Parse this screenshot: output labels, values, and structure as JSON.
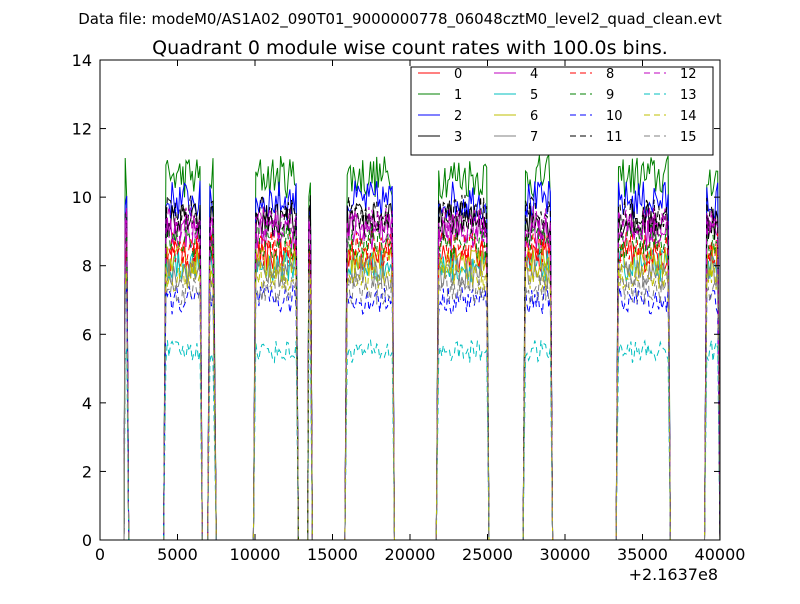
{
  "header": {
    "data_file_label": "Data file: modeM0/AS1A02_090T01_9000000778_06048cztM0_level2_quad_clean.evt"
  },
  "chart_data": {
    "type": "line",
    "title": "Quadrant 0 module wise count rates with 100.0s bins.",
    "xlabel": "",
    "ylabel": "",
    "x_offset_label": "+2.1637e8",
    "xlim": [
      0,
      40000
    ],
    "ylim": [
      0,
      14
    ],
    "x_ticks": [
      0,
      5000,
      10000,
      15000,
      20000,
      25000,
      30000,
      35000,
      40000
    ],
    "y_ticks": [
      0,
      2,
      4,
      6,
      8,
      10,
      12,
      14
    ],
    "x_tick_labels": [
      "0",
      "5000",
      "10000",
      "15000",
      "20000",
      "25000",
      "30000",
      "35000",
      "40000"
    ],
    "y_tick_labels": [
      "0",
      "2",
      "4",
      "6",
      "8",
      "10",
      "12",
      "14"
    ],
    "grid": false,
    "legend_position": "top-right",
    "legend_columns": 4,
    "segments": [
      [
        1550,
        1850
      ],
      [
        4100,
        6600
      ],
      [
        6950,
        7500
      ],
      [
        9900,
        12800
      ],
      [
        13400,
        13700
      ],
      [
        15800,
        19000
      ],
      [
        21700,
        25100
      ],
      [
        27300,
        29200
      ],
      [
        33300,
        36800
      ],
      [
        39000,
        40000
      ]
    ],
    "series": [
      {
        "name": "0",
        "color": "#ff0000",
        "dash": "solid",
        "level": 8.3
      },
      {
        "name": "1",
        "color": "#008000",
        "dash": "solid",
        "level": 10.6
      },
      {
        "name": "2",
        "color": "#0000ff",
        "dash": "solid",
        "level": 9.9
      },
      {
        "name": "3",
        "color": "#000000",
        "dash": "solid",
        "level": 9.3
      },
      {
        "name": "4",
        "color": "#bf00bf",
        "dash": "solid",
        "level": 9.0
      },
      {
        "name": "5",
        "color": "#00bfbf",
        "dash": "solid",
        "level": 8.0
      },
      {
        "name": "6",
        "color": "#bfbf00",
        "dash": "solid",
        "level": 8.1
      },
      {
        "name": "7",
        "color": "#808080",
        "dash": "solid",
        "level": 7.8
      },
      {
        "name": "8",
        "color": "#ff0000",
        "dash": "dashed",
        "level": 8.5
      },
      {
        "name": "9",
        "color": "#008000",
        "dash": "dashed",
        "level": 8.7
      },
      {
        "name": "10",
        "color": "#0000ff",
        "dash": "dashed",
        "level": 7.0
      },
      {
        "name": "11",
        "color": "#000000",
        "dash": "dashed",
        "level": 9.5
      },
      {
        "name": "12",
        "color": "#bf00bf",
        "dash": "dashed",
        "level": 9.2
      },
      {
        "name": "13",
        "color": "#00bfbf",
        "dash": "dashed",
        "level": 5.5
      },
      {
        "name": "14",
        "color": "#bfbf00",
        "dash": "dashed",
        "level": 7.7
      },
      {
        "name": "15",
        "color": "#808080",
        "dash": "dashed",
        "level": 7.3
      }
    ]
  }
}
